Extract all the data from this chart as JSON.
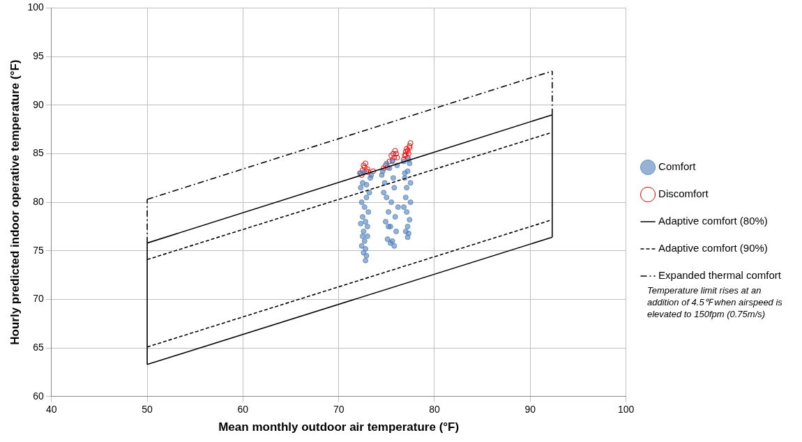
{
  "chart_data": {
    "type": "scatter",
    "xlabel": "Mean monthly outdoor air temperature (°F)",
    "ylabel": "Hourly predicted indoor operative temperature (°F)",
    "xlim": [
      40,
      100
    ],
    "xticks": [
      40,
      50,
      60,
      70,
      80,
      90,
      100
    ],
    "ylim": [
      60,
      100
    ],
    "yticks": [
      60,
      65,
      70,
      75,
      80,
      85,
      90,
      95,
      100
    ],
    "grid": true,
    "legend": "right",
    "series": [
      {
        "name": "Comfort",
        "marker": "circle",
        "color": "#4f81bd",
        "x": [
          72.2,
          72.3,
          72.4,
          72.5,
          72.6,
          72.7,
          72.8,
          72.9,
          73.0,
          73.1,
          73.2,
          73.3,
          72.4,
          72.6,
          72.8,
          73.0,
          72.5,
          72.7,
          72.9,
          72.6,
          72.8,
          73.4,
          72.3,
          72.5,
          72.9,
          74.6,
          74.8,
          75.0,
          75.2,
          75.4,
          75.6,
          75.8,
          76.0,
          76.2,
          74.7,
          74.9,
          75.1,
          75.3,
          75.5,
          75.7,
          75.9,
          76.1,
          75.0,
          75.4,
          75.8,
          74.5,
          75.2,
          75.6,
          76.8,
          76.9,
          77.0,
          77.1,
          77.2,
          77.3,
          77.4,
          77.5,
          76.9,
          77.1,
          77.3,
          77.5,
          77.0,
          77.2,
          77.4,
          76.8,
          77.2
        ],
        "values": [
          83.0,
          81.5,
          80.0,
          78.5,
          77.0,
          76.0,
          75.2,
          74.5,
          76.5,
          79.0,
          81.0,
          82.5,
          75.5,
          74.8,
          74.0,
          77.5,
          82.0,
          79.5,
          80.5,
          83.1,
          78.0,
          82.8,
          77.8,
          76.5,
          81.8,
          83.2,
          82.0,
          80.5,
          79.0,
          77.5,
          76.0,
          75.5,
          77.0,
          79.5,
          81.0,
          78.0,
          76.2,
          83.5,
          80.0,
          82.5,
          78.5,
          83.8,
          84.0,
          75.8,
          81.5,
          82.8,
          77.5,
          84.2,
          84.2,
          82.5,
          80.5,
          79.0,
          77.5,
          76.8,
          78.2,
          80.0,
          83.0,
          81.5,
          84.4,
          82.0,
          77.0,
          76.4,
          84.0,
          79.5,
          83.2
        ]
      },
      {
        "name": "Discomfort",
        "marker": "circle",
        "color": "#ff0000",
        "x": [
          72.3,
          72.5,
          72.7,
          72.9,
          73.1,
          72.6,
          72.8,
          73.0,
          72.4,
          73.6,
          74.7,
          74.9,
          75.1,
          75.3,
          75.5,
          75.7,
          75.9,
          76.1,
          75.6,
          75.8,
          76.0,
          76.8,
          76.9,
          77.0,
          77.1,
          77.2,
          77.3,
          77.4,
          77.5,
          77.0,
          77.2,
          77.4
        ],
        "values": [
          83.0,
          83.3,
          83.6,
          83.2,
          83.1,
          83.8,
          84.0,
          83.4,
          82.8,
          83.2,
          83.5,
          83.8,
          83.6,
          84.2,
          84.8,
          85.0,
          85.3,
          84.6,
          84.3,
          84.6,
          85.0,
          84.4,
          84.8,
          85.2,
          85.5,
          84.6,
          85.0,
          85.8,
          86.1,
          84.9,
          85.3,
          85.6
        ]
      },
      {
        "name": "Adaptive comfort (80%)",
        "type": "line",
        "marker": "none",
        "color": "#000000",
        "line_style": "solid",
        "x": [
          50,
          92.3
        ],
        "values": [
          63.3,
          76.4
        ]
      },
      {
        "type": "line",
        "marker": "none",
        "color": "#000000",
        "line_style": "solid",
        "x": [
          50,
          92.3
        ],
        "values": [
          75.8,
          89.0
        ]
      },
      {
        "type": "line",
        "marker": "none",
        "color": "#000000",
        "line_style": "solid",
        "x": [
          50,
          50
        ],
        "values": [
          63.3,
          75.8
        ]
      },
      {
        "type": "line",
        "marker": "none",
        "color": "#000000",
        "line_style": "solid",
        "x": [
          92.3,
          92.3
        ],
        "values": [
          76.4,
          89.0
        ]
      },
      {
        "name": "Adaptive comfort (90%)",
        "type": "line",
        "marker": "none",
        "color": "#000000",
        "line_style": "dashed",
        "x": [
          50,
          92.3
        ],
        "values": [
          65.1,
          78.2
        ]
      },
      {
        "type": "line",
        "marker": "none",
        "color": "#000000",
        "line_style": "dashed",
        "x": [
          50,
          92.3
        ],
        "values": [
          74.1,
          87.2
        ]
      },
      {
        "name": "Expanded thermal comfort",
        "type": "line",
        "marker": "none",
        "color": "#000000",
        "line_style": "dashdot",
        "x": [
          50,
          92.3
        ],
        "values": [
          80.3,
          93.5
        ]
      },
      {
        "type": "line",
        "marker": "none",
        "color": "#000000",
        "line_style": "dashdot",
        "x": [
          50,
          50
        ],
        "values": [
          75.8,
          80.3
        ]
      },
      {
        "type": "line",
        "marker": "none",
        "color": "#000000",
        "line_style": "dashdot",
        "x": [
          92.3,
          92.3
        ],
        "values": [
          89.0,
          93.5
        ]
      }
    ],
    "annotations": [
      "Temperature limit rises at an addition of 4.5℉  when airspeed is elevated to 150fpm (0.75m/s)"
    ]
  }
}
